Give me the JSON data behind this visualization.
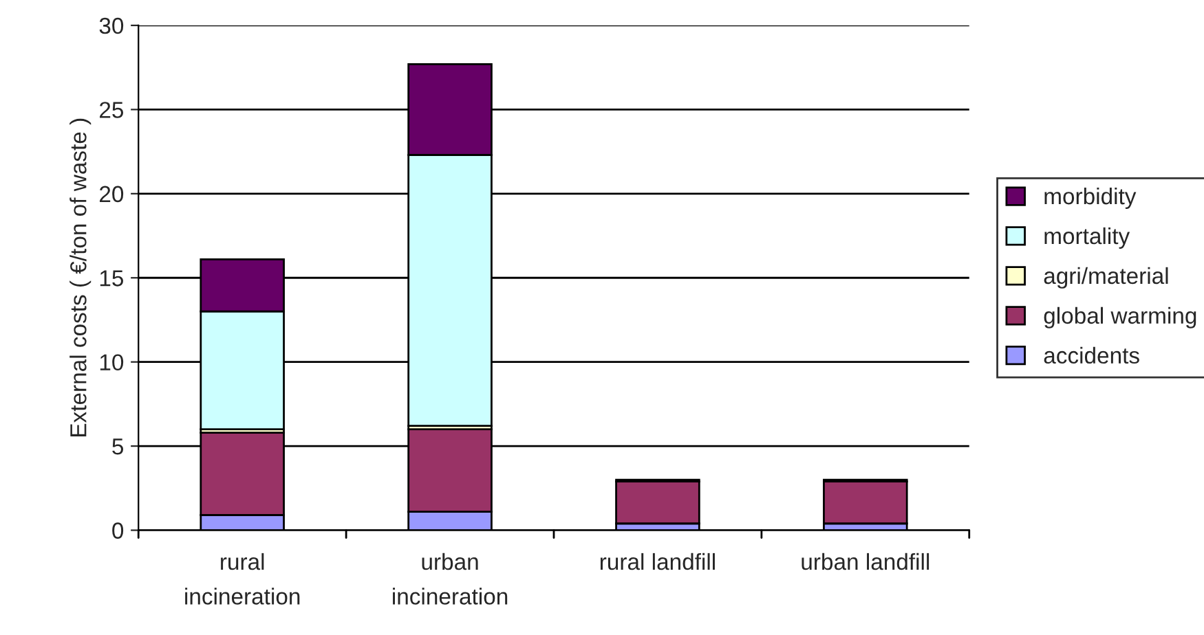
{
  "chart_data": {
    "type": "bar",
    "stacked": true,
    "ylabel": "External costs ( €/ton of waste )",
    "categories": [
      "rural\nincineration",
      "urban\nincineration",
      "rural landfill",
      "urban landfill"
    ],
    "series": [
      {
        "name": "accidents",
        "color": "#9999ff",
        "values": [
          0.9,
          1.1,
          0.4,
          0.4
        ]
      },
      {
        "name": "global warming",
        "color": "#993366",
        "values": [
          4.9,
          4.9,
          2.5,
          2.5
        ]
      },
      {
        "name": "agri/material",
        "color": "#ffffcc",
        "values": [
          0.2,
          0.2,
          0.1,
          0.1
        ]
      },
      {
        "name": "mortality",
        "color": "#ccffff",
        "values": [
          7.0,
          16.1,
          null,
          null
        ]
      },
      {
        "name": "morbidity",
        "color": "#660066",
        "values": [
          3.1,
          5.4,
          null,
          null
        ]
      }
    ],
    "ylim": [
      0,
      30
    ],
    "yticks": [
      0,
      5,
      10,
      15,
      20,
      25,
      30
    ],
    "grid": "y",
    "legend": "right"
  }
}
